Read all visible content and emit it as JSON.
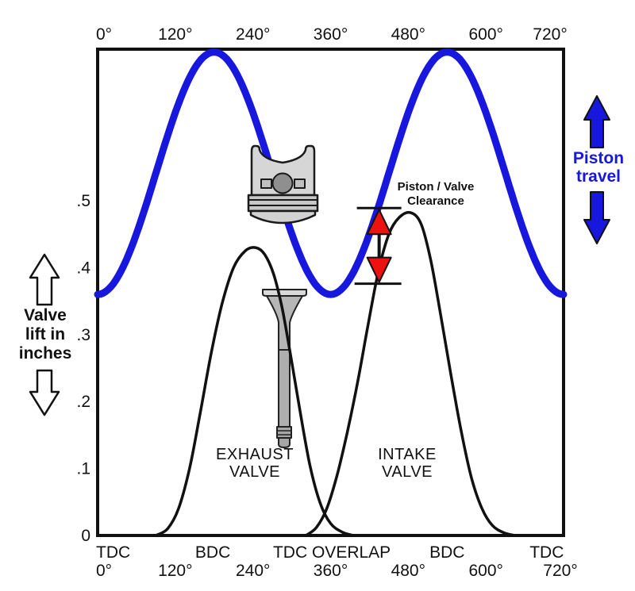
{
  "page": {
    "background": "#ffffff"
  },
  "colors": {
    "piston_blue": "#1717dd",
    "annotation_red": "#ee1111",
    "curve_black": "#111111",
    "metal_light": "#d6d6d6",
    "metal_mid": "#b3b3b3"
  },
  "labels": {
    "valve_lift": {
      "lines": [
        "Valve",
        "lift in",
        "inches"
      ]
    },
    "piston_travel": {
      "lines": [
        "Piston",
        "travel"
      ]
    },
    "clearance": {
      "lines": [
        "Piston / Valve",
        "Clearance"
      ]
    },
    "exhaust": {
      "lines": [
        "EXHAUST",
        "VALVE"
      ]
    },
    "intake": {
      "lines": [
        "INTAKE",
        "VALVE"
      ]
    }
  },
  "chart_data": {
    "type": "line",
    "x_axis": {
      "unit": "degrees of crankshaft rotation",
      "range_deg": [
        0,
        720
      ],
      "tick_labels": [
        "0°",
        "120°",
        "240°",
        "360°",
        "480°",
        "600°",
        "720°"
      ],
      "tick_deg": [
        0,
        120,
        240,
        360,
        480,
        600,
        720
      ],
      "stroke_labels": [
        {
          "text": "TDC",
          "deg": 24
        },
        {
          "text": "BDC",
          "deg": 178
        },
        {
          "text": "TDC OVERLAP",
          "deg": 362
        },
        {
          "text": "BDC",
          "deg": 540
        },
        {
          "text": "TDC",
          "deg": 694
        }
      ]
    },
    "y_axis": {
      "label": "Valve lift in inches",
      "tick_labels": [
        ".5",
        ".4",
        ".3",
        ".2",
        ".1",
        "0"
      ],
      "tick_values": [
        0.5,
        0.4,
        0.3,
        0.2,
        0.1,
        0
      ],
      "range": [
        0,
        0.73
      ],
      "grid": false
    },
    "legend": "none (curves labeled inline)",
    "series": [
      {
        "name": "Piston travel",
        "type": "cosine",
        "color": "#1717dd",
        "mid": 0.541,
        "amplitude": 0.181,
        "period_deg": 360,
        "note": "troughs at 0/360/720 deg (TDC), peaks at 180/540 deg (BDC); arbitrary vertical units"
      },
      {
        "name": "Exhaust valve lift",
        "color": "#111111",
        "opens_deg": 90,
        "peak_deg": 244,
        "peak_lift_in": 0.43,
        "closes_deg": 395,
        "points_deg_lift": [
          [
            90,
            0
          ],
          [
            108,
            0.01
          ],
          [
            125,
            0.04
          ],
          [
            142,
            0.1
          ],
          [
            158,
            0.18
          ],
          [
            175,
            0.27
          ],
          [
            192,
            0.345
          ],
          [
            210,
            0.4
          ],
          [
            228,
            0.425
          ],
          [
            244,
            0.43
          ],
          [
            258,
            0.42
          ],
          [
            272,
            0.39
          ],
          [
            285,
            0.34
          ],
          [
            298,
            0.27
          ],
          [
            312,
            0.19
          ],
          [
            328,
            0.105
          ],
          [
            344,
            0.048
          ],
          [
            360,
            0.018
          ],
          [
            378,
            0.005
          ],
          [
            395,
            0
          ]
        ]
      },
      {
        "name": "Intake valve lift",
        "color": "#111111",
        "opens_deg": 322,
        "peak_deg": 484,
        "peak_lift_in": 0.48,
        "closes_deg": 645,
        "points_deg_lift": [
          [
            322,
            0
          ],
          [
            338,
            0.012
          ],
          [
            354,
            0.04
          ],
          [
            370,
            0.09
          ],
          [
            386,
            0.155
          ],
          [
            402,
            0.23
          ],
          [
            418,
            0.315
          ],
          [
            434,
            0.395
          ],
          [
            450,
            0.45
          ],
          [
            466,
            0.475
          ],
          [
            484,
            0.482
          ],
          [
            500,
            0.465
          ],
          [
            515,
            0.41
          ],
          [
            530,
            0.33
          ],
          [
            546,
            0.24
          ],
          [
            562,
            0.155
          ],
          [
            578,
            0.085
          ],
          [
            594,
            0.04
          ],
          [
            610,
            0.015
          ],
          [
            628,
            0.004
          ],
          [
            645,
            0
          ]
        ]
      }
    ],
    "annotation": {
      "label": "Piston / Valve Clearance",
      "at_deg": 435,
      "lift_span": [
        0.376,
        0.489
      ]
    }
  }
}
